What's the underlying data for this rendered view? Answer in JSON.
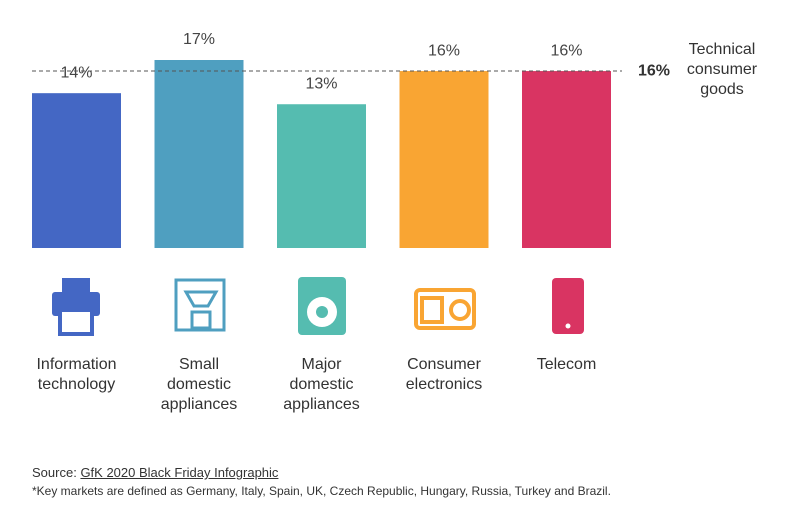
{
  "chart_data": {
    "type": "bar",
    "categories": [
      "Information technology",
      "Small domestic appliances",
      "Major domestic appliances",
      "Consumer electronics",
      "Telecom"
    ],
    "values": [
      14,
      17,
      13,
      16,
      16
    ],
    "value_labels": [
      "14%",
      "17%",
      "13%",
      "16%",
      "16%"
    ],
    "colors": [
      "#4467c4",
      "#4f9fc0",
      "#55bcb0",
      "#f9a533",
      "#d93462"
    ],
    "reference_line": {
      "value": 16,
      "value_label": "16%",
      "label": "Technical consumer goods"
    },
    "source": {
      "prefix": "Source:",
      "link": "GfK 2020 Black Friday Infographic"
    },
    "footnote": "*Key markets are defined as Germany, Italy, Spain, UK, Czech Republic, Hungary, Russia, Turkey and Brazil."
  }
}
